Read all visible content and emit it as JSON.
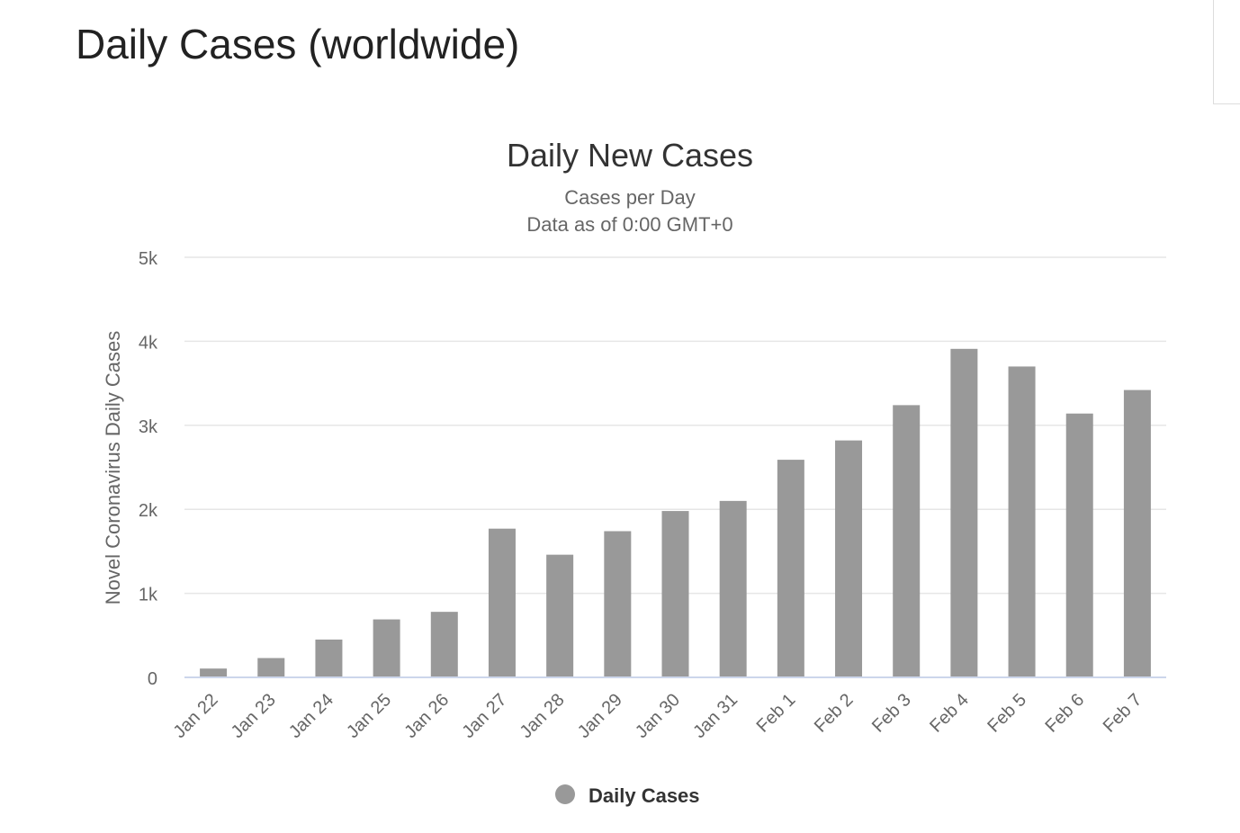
{
  "page": {
    "heading": "Daily Cases (worldwide)"
  },
  "colors": {
    "bar": "#999999",
    "grid": "#e6e6e6",
    "axis_line": "#ccd6eb",
    "text": "#666666",
    "title": "#333333"
  },
  "chart_data": {
    "type": "bar",
    "title": "Daily New Cases",
    "subtitle": [
      "Cases per Day",
      "Data as of 0:00 GMT+0"
    ],
    "xlabel": "",
    "ylabel": "Novel Coronavirus Daily Cases",
    "ylim": [
      0,
      5000
    ],
    "yticks": [
      {
        "value": 0,
        "label": "0"
      },
      {
        "value": 1000,
        "label": "1k"
      },
      {
        "value": 2000,
        "label": "2k"
      },
      {
        "value": 3000,
        "label": "3k"
      },
      {
        "value": 4000,
        "label": "4k"
      },
      {
        "value": 5000,
        "label": "5k"
      }
    ],
    "grid": true,
    "categories": [
      "Jan 22",
      "Jan 23",
      "Jan 24",
      "Jan 25",
      "Jan 26",
      "Jan 27",
      "Jan 28",
      "Jan 29",
      "Jan 30",
      "Jan 31",
      "Feb 1",
      "Feb 2",
      "Feb 3",
      "Feb 4",
      "Feb 5",
      "Feb 6",
      "Feb 7"
    ],
    "series": [
      {
        "name": "Daily Cases",
        "color": "#999999",
        "values": [
          105,
          230,
          450,
          690,
          780,
          1770,
          1460,
          1740,
          1980,
          2100,
          2590,
          2820,
          3240,
          3910,
          3700,
          3140,
          3420
        ]
      }
    ],
    "legend": {
      "position": "bottom-center",
      "marker": "circle"
    }
  }
}
